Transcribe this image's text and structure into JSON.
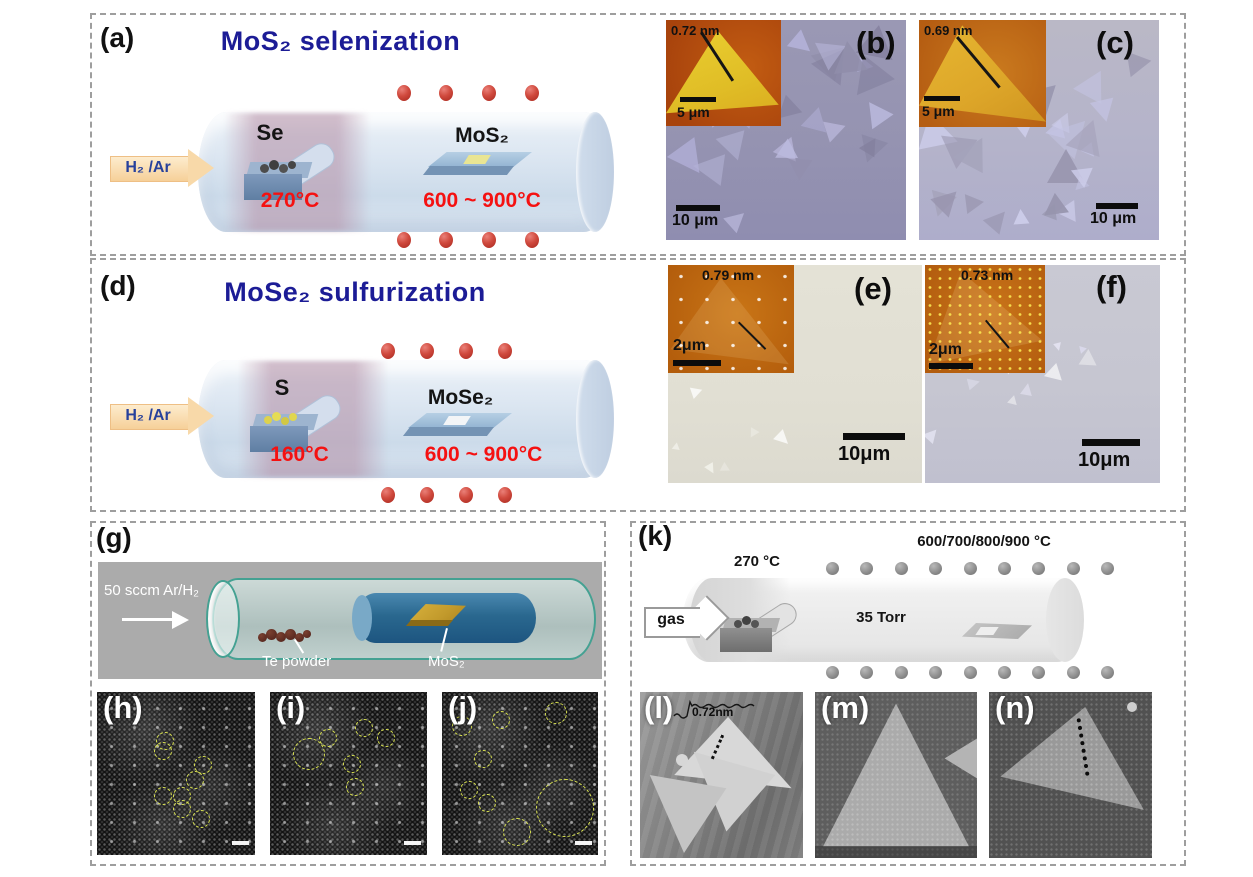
{
  "figure": {
    "background": "#ffffff",
    "border_color": "#9e9e9e"
  },
  "colors": {
    "title_navy": "#1c1c96",
    "temp_red": "#f51111",
    "gas_blue": "#27419c",
    "heater_dot_red": "#cf463a",
    "heater_dot_gray": "#8a8a8a",
    "defect_marker_yellow": "#d8e14f"
  },
  "panels": {
    "a": {
      "label": "(a)",
      "title": "MoS₂  selenization",
      "gas_label": "H₂ /Ar",
      "source_label": "Se",
      "source_temp": "270°C",
      "sample_label": "MoS₂",
      "zone_temp": "600 ~ 900°C"
    },
    "b": {
      "label": "(b)",
      "inset_height": "0.72 nm",
      "inset_scalebar": "5 μm",
      "scalebar": "10 μm"
    },
    "c": {
      "label": "(c)",
      "inset_height": "0.69 nm",
      "inset_scalebar": "5 μm",
      "scalebar": "10 μm"
    },
    "d": {
      "label": "(d)",
      "title": "MoSe₂ sulfurization",
      "gas_label": "H₂ /Ar",
      "source_label": "S",
      "source_temp": "160°C",
      "sample_label": "MoSe₂",
      "zone_temp": "600 ~ 900°C"
    },
    "e": {
      "label": "(e)",
      "inset_height": "0.79 nm",
      "inset_scalebar": "2μm",
      "scalebar": "10μm"
    },
    "f": {
      "label": "(f)",
      "inset_height": "0.73 nm",
      "inset_scalebar": "2μm",
      "scalebar": "10μm"
    },
    "g": {
      "label": "(g)",
      "flow_label": "50 sccm Ar/H₂",
      "source_label": "Te powder",
      "sample_label": "MoS₂"
    },
    "h": {
      "label": "(h)"
    },
    "i": {
      "label": "(i)"
    },
    "j": {
      "label": "(j)"
    },
    "k": {
      "label": "(k)",
      "gas_label": "gas",
      "source_temp": "270 °C",
      "zone_temps": "600/700/800/900 °C",
      "pressure": "35 Torr"
    },
    "l": {
      "label": "(l)",
      "step_height": "0.72nm"
    },
    "m": {
      "label": "(m)"
    },
    "n": {
      "label": "(n)"
    }
  }
}
